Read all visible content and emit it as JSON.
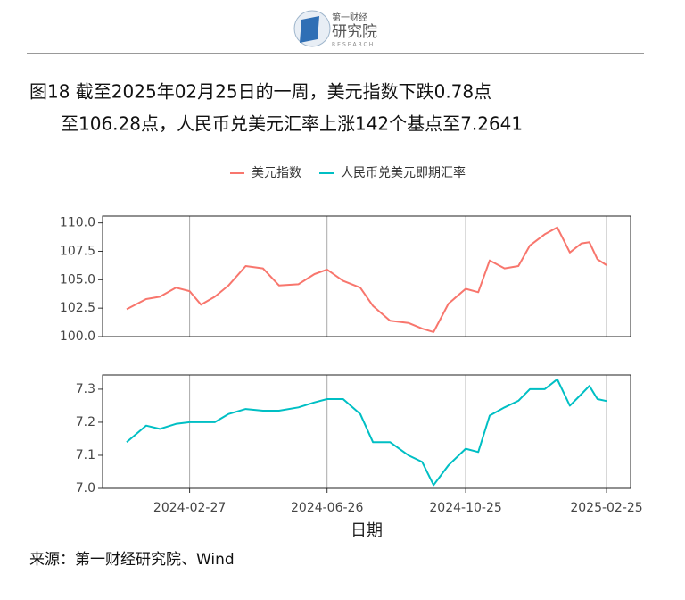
{
  "header": {
    "org_small": "第一财经",
    "org": "研究院",
    "org_en": "RESEARCH"
  },
  "figure": {
    "title_line1": "图18  截至2025年02月25日的一周，美元指数下跌0.78点",
    "title_line2": "至106.28点，人民币兑美元汇率上涨142个基点至7.2641",
    "xlabel": "日期",
    "source": "来源：第一财经研究院、Wind"
  },
  "chart_data": [
    {
      "type": "line",
      "x": [
        "2024-01-03",
        "2024-01-20",
        "2024-02-01",
        "2024-02-15",
        "2024-02-27",
        "2024-03-08",
        "2024-03-20",
        "2024-04-01",
        "2024-04-16",
        "2024-05-01",
        "2024-05-15",
        "2024-06-01",
        "2024-06-15",
        "2024-06-26",
        "2024-07-10",
        "2024-07-25",
        "2024-08-05",
        "2024-08-20",
        "2024-09-05",
        "2024-09-17",
        "2024-09-27",
        "2024-10-10",
        "2024-10-25",
        "2024-11-05",
        "2024-11-15",
        "2024-11-28",
        "2024-12-10",
        "2024-12-20",
        "2025-01-02",
        "2025-01-13",
        "2025-01-24",
        "2025-02-03",
        "2025-02-10",
        "2025-02-17",
        "2025-02-25"
      ],
      "series": [
        {
          "name": "美元指数",
          "color": "#F8766D",
          "values": [
            102.4,
            103.3,
            103.5,
            104.3,
            104.0,
            102.8,
            103.5,
            104.5,
            106.2,
            106.0,
            104.5,
            104.6,
            105.5,
            105.9,
            104.9,
            104.3,
            102.7,
            101.4,
            101.2,
            100.7,
            100.4,
            102.9,
            104.2,
            103.9,
            106.7,
            106.0,
            106.2,
            108.0,
            109.0,
            109.6,
            107.4,
            108.2,
            108.3,
            106.8,
            106.28
          ]
        }
      ],
      "xlim": [
        "2023-12-13",
        "2025-03-18"
      ],
      "ylim": [
        100,
        110.6
      ],
      "yticks": [
        {
          "value": 100,
          "label": "100.0"
        },
        102.5,
        {
          "value": 105,
          "label": "105.0"
        },
        107.5,
        {
          "value": 110,
          "label": "110.0"
        }
      ],
      "grid": true
    },
    {
      "type": "line",
      "x": [
        "2024-01-03",
        "2024-01-20",
        "2024-02-01",
        "2024-02-15",
        "2024-02-27",
        "2024-03-08",
        "2024-03-20",
        "2024-04-01",
        "2024-04-16",
        "2024-05-01",
        "2024-05-15",
        "2024-06-01",
        "2024-06-15",
        "2024-06-26",
        "2024-07-10",
        "2024-07-25",
        "2024-08-05",
        "2024-08-20",
        "2024-09-05",
        "2024-09-17",
        "2024-09-27",
        "2024-10-10",
        "2024-10-25",
        "2024-11-05",
        "2024-11-15",
        "2024-11-28",
        "2024-12-10",
        "2024-12-20",
        "2025-01-02",
        "2025-01-13",
        "2025-01-24",
        "2025-02-03",
        "2025-02-10",
        "2025-02-17",
        "2025-02-25"
      ],
      "series": [
        {
          "name": "人民币兑美元即期汇率",
          "color": "#00BFC4",
          "values": [
            7.14,
            7.19,
            7.18,
            7.195,
            7.2,
            7.2,
            7.2,
            7.225,
            7.24,
            7.235,
            7.235,
            7.245,
            7.26,
            7.27,
            7.27,
            7.225,
            7.14,
            7.14,
            7.1,
            7.08,
            7.01,
            7.07,
            7.12,
            7.11,
            7.22,
            7.245,
            7.265,
            7.3,
            7.3,
            7.33,
            7.25,
            7.285,
            7.31,
            7.27,
            7.2641
          ]
        }
      ],
      "xlim": [
        "2023-12-13",
        "2025-03-18"
      ],
      "ylim": [
        7.0,
        7.343
      ],
      "xticks": [
        "2024-02-27",
        "2024-06-26",
        "2024-10-25",
        "2025-02-25"
      ],
      "yticks": [
        {
          "value": 7.0,
          "label": "7.0"
        },
        7.1,
        7.2,
        7.3
      ],
      "grid": true
    }
  ]
}
